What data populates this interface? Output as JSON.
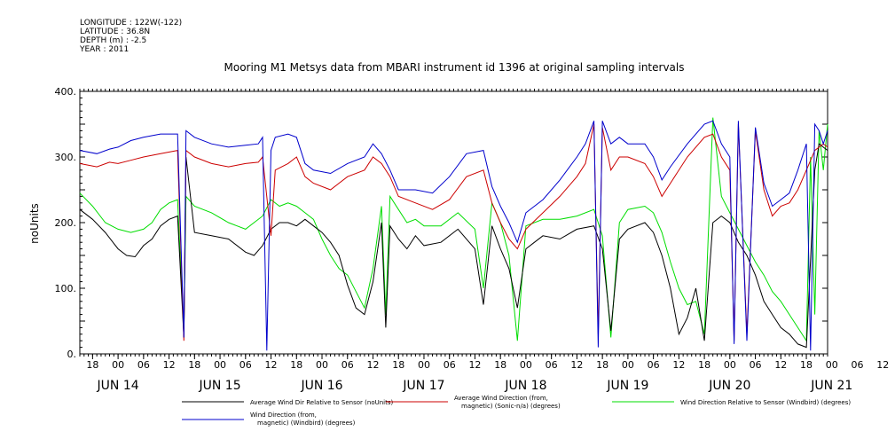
{
  "metadata": [
    "LONGITUDE : 122W(-122)",
    "LATITUDE : 36.8N",
    "DEPTH (m) : -2.5",
    "YEAR : 2011"
  ],
  "chart_data": {
    "type": "line",
    "title": "Mooring M1 Metsys data from MBARI instrument id 1396 at original sampling intervals",
    "ylabel": "noUnits",
    "xlabel": "",
    "ylim": [
      0,
      400
    ],
    "yticks": [
      "0.",
      "100.",
      "200.",
      "300.",
      "400."
    ],
    "xlim_hours": [
      -9,
      167
    ],
    "x_hour_labels": [
      "18",
      "00",
      "06",
      "12",
      "18",
      "00",
      "06",
      "12",
      "18",
      "00",
      "06",
      "12",
      "18",
      "00",
      "06",
      "12",
      "18",
      "00",
      "06",
      "12",
      "18",
      "00",
      "06",
      "12",
      "18",
      "00",
      "06",
      "12",
      "18",
      "00",
      "06",
      "12"
    ],
    "x_day_labels": [
      "JUN 14",
      "JUN 15",
      "JUN 16",
      "JUN 17",
      "JUN 18",
      "JUN 19",
      "JUN 20",
      "JUN 21"
    ],
    "grid": false,
    "series": [
      {
        "name": "Average Wind Dir Relative to Sensor (noUnits)",
        "color": "#000000",
        "points": [
          [
            -9,
            220
          ],
          [
            -6,
            205
          ],
          [
            -3,
            185
          ],
          [
            0,
            160
          ],
          [
            2,
            150
          ],
          [
            4,
            148
          ],
          [
            6,
            165
          ],
          [
            8,
            175
          ],
          [
            10,
            195
          ],
          [
            12,
            205
          ],
          [
            14,
            210
          ],
          [
            15.5,
            25
          ],
          [
            16,
            300
          ],
          [
            18,
            185
          ],
          [
            22,
            180
          ],
          [
            26,
            175
          ],
          [
            30,
            155
          ],
          [
            32,
            150
          ],
          [
            34,
            165
          ],
          [
            36,
            190
          ],
          [
            38,
            200
          ],
          [
            40,
            200
          ],
          [
            42,
            195
          ],
          [
            44,
            205
          ],
          [
            46,
            195
          ],
          [
            48,
            185
          ],
          [
            50,
            170
          ],
          [
            52,
            150
          ],
          [
            54,
            105
          ],
          [
            56,
            70
          ],
          [
            58,
            60
          ],
          [
            60,
            110
          ],
          [
            62,
            200
          ],
          [
            63,
            40
          ],
          [
            64,
            195
          ],
          [
            66,
            175
          ],
          [
            68,
            160
          ],
          [
            70,
            180
          ],
          [
            72,
            165
          ],
          [
            76,
            170
          ],
          [
            80,
            190
          ],
          [
            84,
            160
          ],
          [
            86,
            75
          ],
          [
            88,
            195
          ],
          [
            90,
            160
          ],
          [
            92,
            130
          ],
          [
            94,
            70
          ],
          [
            96,
            160
          ],
          [
            98,
            170
          ],
          [
            100,
            180
          ],
          [
            104,
            175
          ],
          [
            108,
            190
          ],
          [
            112,
            195
          ],
          [
            114,
            160
          ],
          [
            116,
            35
          ],
          [
            118,
            175
          ],
          [
            120,
            190
          ],
          [
            124,
            200
          ],
          [
            126,
            185
          ],
          [
            128,
            150
          ],
          [
            130,
            100
          ],
          [
            132,
            30
          ],
          [
            134,
            55
          ],
          [
            136,
            100
          ],
          [
            138,
            20
          ],
          [
            140,
            200
          ],
          [
            142,
            210
          ],
          [
            144,
            200
          ],
          [
            146,
            170
          ],
          [
            148,
            150
          ],
          [
            150,
            120
          ],
          [
            152,
            80
          ],
          [
            154,
            60
          ],
          [
            156,
            40
          ],
          [
            158,
            30
          ],
          [
            160,
            15
          ],
          [
            162,
            10
          ],
          [
            164,
            280
          ],
          [
            165,
            320
          ],
          [
            167,
            310
          ]
        ]
      },
      {
        "name": "Average Wind Direction (from, magnetic) (Sonic-n/a) (degrees)",
        "color": "#cc0000",
        "points": [
          [
            -9,
            290
          ],
          [
            -5,
            285
          ],
          [
            -2,
            292
          ],
          [
            0,
            290
          ],
          [
            3,
            295
          ],
          [
            6,
            300
          ],
          [
            10,
            305
          ],
          [
            14,
            310
          ],
          [
            15.5,
            20
          ],
          [
            16,
            310
          ],
          [
            18,
            300
          ],
          [
            22,
            290
          ],
          [
            26,
            285
          ],
          [
            30,
            290
          ],
          [
            33,
            292
          ],
          [
            34,
            300
          ],
          [
            36,
            180
          ],
          [
            37,
            280
          ],
          [
            40,
            290
          ],
          [
            42,
            300
          ],
          [
            44,
            270
          ],
          [
            46,
            260
          ],
          [
            50,
            250
          ],
          [
            54,
            270
          ],
          [
            58,
            280
          ],
          [
            60,
            300
          ],
          [
            62,
            290
          ],
          [
            64,
            270
          ],
          [
            66,
            240
          ],
          [
            70,
            230
          ],
          [
            74,
            220
          ],
          [
            78,
            235
          ],
          [
            82,
            270
          ],
          [
            86,
            280
          ],
          [
            88,
            230
          ],
          [
            90,
            200
          ],
          [
            92,
            175
          ],
          [
            94,
            160
          ],
          [
            96,
            190
          ],
          [
            100,
            215
          ],
          [
            104,
            240
          ],
          [
            108,
            270
          ],
          [
            110,
            290
          ],
          [
            112,
            350
          ],
          [
            113,
            30
          ],
          [
            114,
            345
          ],
          [
            116,
            280
          ],
          [
            118,
            300
          ],
          [
            120,
            300
          ],
          [
            124,
            290
          ],
          [
            126,
            270
          ],
          [
            128,
            240
          ],
          [
            130,
            260
          ],
          [
            134,
            300
          ],
          [
            138,
            330
          ],
          [
            140,
            335
          ],
          [
            142,
            300
          ],
          [
            144,
            280
          ],
          [
            145,
            20
          ],
          [
            146,
            350
          ],
          [
            148,
            30
          ],
          [
            150,
            340
          ],
          [
            152,
            250
          ],
          [
            154,
            210
          ],
          [
            156,
            225
          ],
          [
            158,
            230
          ],
          [
            160,
            250
          ],
          [
            162,
            280
          ],
          [
            164,
            310
          ],
          [
            166,
            320
          ],
          [
            167,
            315
          ]
        ]
      },
      {
        "name": "Wind Direction Relative to Sensor (Windbird) (degrees)",
        "color": "#00dd00",
        "points": [
          [
            -9,
            245
          ],
          [
            -6,
            225
          ],
          [
            -3,
            200
          ],
          [
            0,
            190
          ],
          [
            3,
            185
          ],
          [
            6,
            190
          ],
          [
            8,
            200
          ],
          [
            10,
            220
          ],
          [
            12,
            230
          ],
          [
            14,
            235
          ],
          [
            15.5,
            30
          ],
          [
            16,
            240
          ],
          [
            18,
            225
          ],
          [
            22,
            215
          ],
          [
            26,
            200
          ],
          [
            28,
            195
          ],
          [
            30,
            190
          ],
          [
            32,
            200
          ],
          [
            34,
            210
          ],
          [
            36,
            235
          ],
          [
            38,
            225
          ],
          [
            40,
            230
          ],
          [
            42,
            225
          ],
          [
            44,
            215
          ],
          [
            46,
            205
          ],
          [
            48,
            175
          ],
          [
            50,
            150
          ],
          [
            52,
            130
          ],
          [
            54,
            120
          ],
          [
            56,
            95
          ],
          [
            58,
            70
          ],
          [
            60,
            130
          ],
          [
            62,
            225
          ],
          [
            63,
            60
          ],
          [
            64,
            240
          ],
          [
            66,
            220
          ],
          [
            68,
            200
          ],
          [
            70,
            205
          ],
          [
            72,
            195
          ],
          [
            76,
            195
          ],
          [
            80,
            215
          ],
          [
            84,
            190
          ],
          [
            86,
            100
          ],
          [
            88,
            230
          ],
          [
            90,
            200
          ],
          [
            92,
            150
          ],
          [
            94,
            20
          ],
          [
            96,
            195
          ],
          [
            100,
            205
          ],
          [
            104,
            205
          ],
          [
            108,
            210
          ],
          [
            112,
            220
          ],
          [
            114,
            180
          ],
          [
            116,
            25
          ],
          [
            118,
            200
          ],
          [
            120,
            220
          ],
          [
            124,
            225
          ],
          [
            126,
            215
          ],
          [
            128,
            185
          ],
          [
            130,
            140
          ],
          [
            132,
            100
          ],
          [
            134,
            75
          ],
          [
            136,
            80
          ],
          [
            138,
            30
          ],
          [
            140,
            360
          ],
          [
            142,
            240
          ],
          [
            144,
            215
          ],
          [
            146,
            190
          ],
          [
            148,
            165
          ],
          [
            150,
            140
          ],
          [
            152,
            120
          ],
          [
            154,
            95
          ],
          [
            156,
            80
          ],
          [
            158,
            60
          ],
          [
            160,
            40
          ],
          [
            162,
            20
          ],
          [
            163,
            300
          ],
          [
            164,
            60
          ],
          [
            165,
            340
          ],
          [
            166,
            280
          ],
          [
            167,
            350
          ]
        ]
      },
      {
        "name": "Wind Direction (from, magnetic) (Windbird) (degrees)",
        "color": "#0000cc",
        "points": [
          [
            -9,
            310
          ],
          [
            -5,
            305
          ],
          [
            -2,
            312
          ],
          [
            0,
            315
          ],
          [
            3,
            325
          ],
          [
            6,
            330
          ],
          [
            10,
            335
          ],
          [
            14,
            335
          ],
          [
            15.5,
            25
          ],
          [
            16,
            340
          ],
          [
            18,
            330
          ],
          [
            22,
            320
          ],
          [
            26,
            315
          ],
          [
            30,
            318
          ],
          [
            33,
            320
          ],
          [
            34,
            330
          ],
          [
            35,
            5
          ],
          [
            36,
            310
          ],
          [
            37,
            330
          ],
          [
            40,
            335
          ],
          [
            42,
            330
          ],
          [
            44,
            290
          ],
          [
            46,
            280
          ],
          [
            50,
            275
          ],
          [
            54,
            290
          ],
          [
            58,
            300
          ],
          [
            60,
            320
          ],
          [
            62,
            305
          ],
          [
            64,
            280
          ],
          [
            66,
            250
          ],
          [
            70,
            250
          ],
          [
            74,
            245
          ],
          [
            78,
            270
          ],
          [
            82,
            305
          ],
          [
            86,
            310
          ],
          [
            88,
            255
          ],
          [
            90,
            225
          ],
          [
            92,
            200
          ],
          [
            94,
            170
          ],
          [
            96,
            215
          ],
          [
            100,
            235
          ],
          [
            104,
            265
          ],
          [
            108,
            300
          ],
          [
            110,
            320
          ],
          [
            112,
            355
          ],
          [
            113,
            10
          ],
          [
            114,
            355
          ],
          [
            116,
            320
          ],
          [
            118,
            330
          ],
          [
            120,
            320
          ],
          [
            124,
            320
          ],
          [
            126,
            300
          ],
          [
            128,
            265
          ],
          [
            130,
            285
          ],
          [
            134,
            320
          ],
          [
            138,
            350
          ],
          [
            140,
            355
          ],
          [
            142,
            320
          ],
          [
            144,
            300
          ],
          [
            145,
            15
          ],
          [
            146,
            355
          ],
          [
            148,
            20
          ],
          [
            150,
            345
          ],
          [
            152,
            260
          ],
          [
            154,
            225
          ],
          [
            156,
            235
          ],
          [
            158,
            245
          ],
          [
            160,
            280
          ],
          [
            162,
            320
          ],
          [
            163,
            5
          ],
          [
            164,
            350
          ],
          [
            165,
            340
          ],
          [
            166,
            320
          ],
          [
            167,
            340
          ]
        ]
      }
    ],
    "legend": {
      "placement": "bottom",
      "entries": [
        {
          "color": "#000000",
          "lines": [
            "Average Wind Dir Relative to Sensor (noUnits)"
          ]
        },
        {
          "color": "#cc0000",
          "lines": [
            "Average Wind Direction (from,",
            "magnetic) (Sonic-n/a) (degrees)"
          ]
        },
        {
          "color": "#00dd00",
          "lines": [
            "Wind Direction Relative to Sensor (Windbird) (degrees)"
          ]
        },
        {
          "color": "#0000cc",
          "lines": [
            "Wind Direction (from,",
            "magnetic) (Windbird) (degrees)"
          ]
        }
      ]
    }
  }
}
